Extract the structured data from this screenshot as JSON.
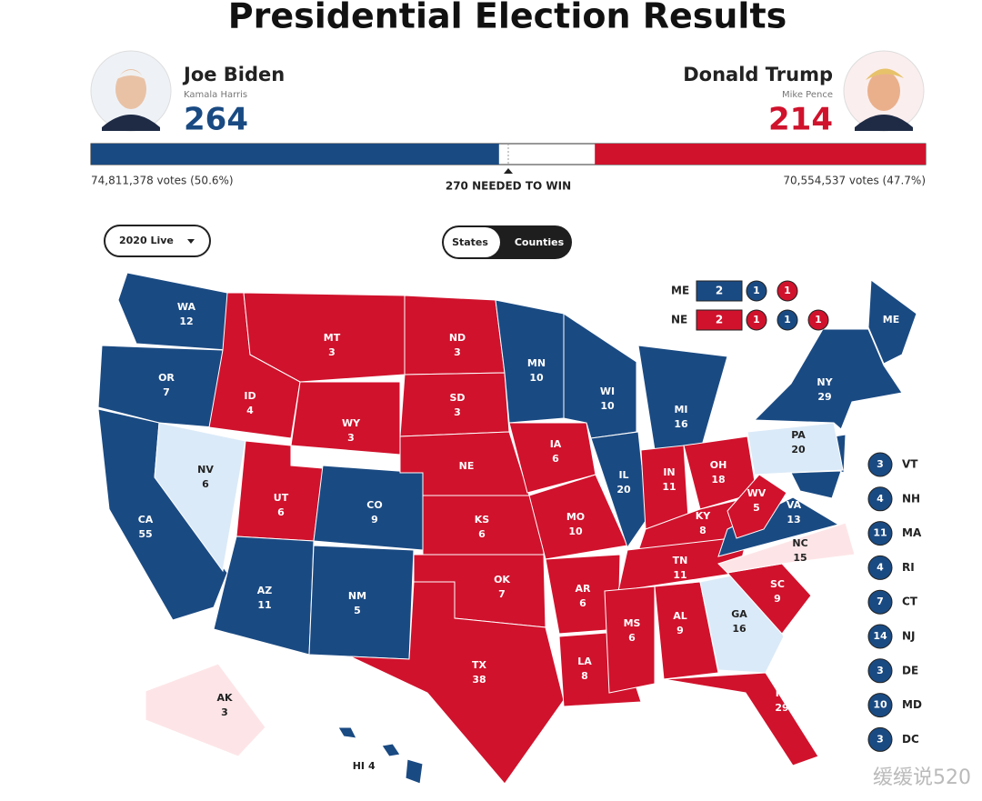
{
  "header": {
    "title": "Presidential Election Results"
  },
  "candidates": [
    {
      "name": "Joe Biden",
      "running_mate": "Kamala Harris",
      "ev": 264,
      "votes": "74,811,378 votes (50.6%)",
      "color": "#1a4a82"
    },
    {
      "name": "Donald Trump",
      "running_mate": "Mike Pence",
      "ev": 214,
      "votes": "70,554,537 votes (47.7%)",
      "color": "#d0122c"
    }
  ],
  "needed_to_win": {
    "value": 270,
    "label": "270 NEEDED TO WIN"
  },
  "controls": {
    "dropdown": "2020 Live",
    "toggle": [
      "States",
      "Counties"
    ]
  },
  "splits": [
    {
      "label": "ME",
      "items": [
        {
          "value": 2,
          "color": "#1a4a82"
        },
        {
          "value": 1,
          "color": "#1a4a82"
        },
        {
          "value": 1,
          "color": "#d0122c"
        }
      ]
    },
    {
      "label": "NE",
      "items": [
        {
          "value": 2,
          "color": "#d0122c"
        },
        {
          "value": 1,
          "color": "#d0122c"
        },
        {
          "value": 1,
          "color": "#1a4a82"
        },
        {
          "value": 1,
          "color": "#d0122c"
        }
      ]
    }
  ],
  "small_states": [
    {
      "abbr": "VT",
      "ev": 3
    },
    {
      "abbr": "NH",
      "ev": 4
    },
    {
      "abbr": "MA",
      "ev": 11
    },
    {
      "abbr": "RI",
      "ev": 4
    },
    {
      "abbr": "CT",
      "ev": 7
    },
    {
      "abbr": "NJ",
      "ev": 14
    },
    {
      "abbr": "DE",
      "ev": 3
    },
    {
      "abbr": "MD",
      "ev": 10
    },
    {
      "abbr": "DC",
      "ev": 3
    }
  ],
  "small_color": "#1a4a82",
  "states": [
    {
      "abbr": "WA",
      "ev": 12,
      "color": "#1a4a82"
    },
    {
      "abbr": "OR",
      "ev": 7,
      "color": "#1a4a82"
    },
    {
      "abbr": "CA",
      "ev": 55,
      "color": "#1a4a82"
    },
    {
      "abbr": "NV",
      "ev": 6,
      "color": "#dbeaf8"
    },
    {
      "abbr": "ID",
      "ev": 4,
      "color": "#d0122c"
    },
    {
      "abbr": "MT",
      "ev": 3,
      "color": "#d0122c"
    },
    {
      "abbr": "WY",
      "ev": 3,
      "color": "#d0122c"
    },
    {
      "abbr": "UT",
      "ev": 6,
      "color": "#d0122c"
    },
    {
      "abbr": "AZ",
      "ev": 11,
      "color": "#1a4a82"
    },
    {
      "abbr": "CO",
      "ev": 9,
      "color": "#1a4a82"
    },
    {
      "abbr": "NM",
      "ev": 5,
      "color": "#1a4a82"
    },
    {
      "abbr": "ND",
      "ev": 3,
      "color": "#d0122c"
    },
    {
      "abbr": "SD",
      "ev": 3,
      "color": "#d0122c"
    },
    {
      "abbr": "NE",
      "color": "#d0122c"
    },
    {
      "abbr": "KS",
      "ev": 6,
      "color": "#d0122c"
    },
    {
      "abbr": "OK",
      "ev": 7,
      "color": "#d0122c"
    },
    {
      "abbr": "TX",
      "ev": 38,
      "color": "#d0122c"
    },
    {
      "abbr": "MN",
      "ev": 10,
      "color": "#1a4a82"
    },
    {
      "abbr": "IA",
      "ev": 6,
      "color": "#d0122c"
    },
    {
      "abbr": "MO",
      "ev": 10,
      "color": "#d0122c"
    },
    {
      "abbr": "AR",
      "ev": 6,
      "color": "#d0122c"
    },
    {
      "abbr": "LA",
      "ev": 8,
      "color": "#d0122c"
    },
    {
      "abbr": "WI",
      "ev": 10,
      "color": "#1a4a82"
    },
    {
      "abbr": "IL",
      "ev": 20,
      "color": "#1a4a82"
    },
    {
      "abbr": "MI",
      "ev": 16,
      "color": "#1a4a82"
    },
    {
      "abbr": "IN",
      "ev": 11,
      "color": "#d0122c"
    },
    {
      "abbr": "OH",
      "ev": 18,
      "color": "#d0122c"
    },
    {
      "abbr": "KY",
      "ev": 8,
      "color": "#d0122c"
    },
    {
      "abbr": "TN",
      "ev": 11,
      "color": "#d0122c"
    },
    {
      "abbr": "MS",
      "ev": 6,
      "color": "#d0122c"
    },
    {
      "abbr": "AL",
      "ev": 9,
      "color": "#d0122c"
    },
    {
      "abbr": "GA",
      "ev": 16,
      "color": "#dbeaf8"
    },
    {
      "abbr": "FL",
      "ev": 29,
      "color": "#d0122c"
    },
    {
      "abbr": "SC",
      "ev": 9,
      "color": "#d0122c"
    },
    {
      "abbr": "NC",
      "ev": 15,
      "color": "#fde5e7"
    },
    {
      "abbr": "VA",
      "ev": 13,
      "color": "#1a4a82"
    },
    {
      "abbr": "WV",
      "ev": 5,
      "color": "#d0122c"
    },
    {
      "abbr": "PA",
      "ev": 20,
      "color": "#dbeaf8"
    },
    {
      "abbr": "NY",
      "ev": 29,
      "color": "#1a4a82"
    },
    {
      "abbr": "ME",
      "color": "#1a4a82"
    },
    {
      "abbr": "AK",
      "ev": 3,
      "color": "#fde5e7"
    },
    {
      "abbr": "HI",
      "ev": 4,
      "color": "#1a4a82"
    }
  ],
  "watermark": "缓缓说520"
}
